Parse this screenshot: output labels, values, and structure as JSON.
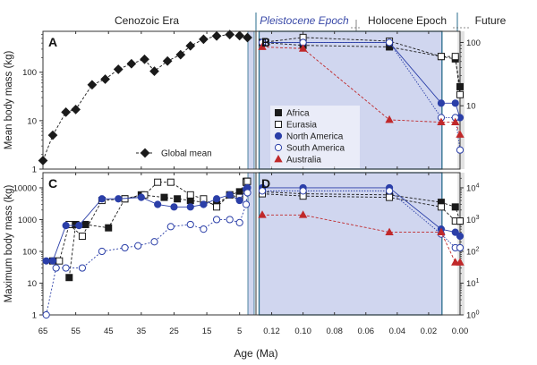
{
  "header": {
    "cenozoic": "Cenozoic Era",
    "pleistocene": "Pleistocene Epoch",
    "holocene": "Holocene Epoch",
    "future": "Future"
  },
  "xlabel": "Age (Ma)",
  "colors": {
    "africa": "#1a1a1a",
    "eurasia": "#1a1a1a",
    "north_america": "#2b3fa8",
    "south_america": "#2b3fa8",
    "australia": "#c0282a",
    "global": "#1a1a1a",
    "pleistocene_shade": "#d0d6ef",
    "pleistocene_frame": "#2a6e8c",
    "future_shade": "#e2e2e2"
  },
  "legend_top": [
    {
      "key": "africa",
      "label": "Africa",
      "marker": "square-filled"
    },
    {
      "key": "eurasia",
      "label": "Eurasia",
      "marker": "square-open"
    },
    {
      "key": "north_america",
      "label": "North America",
      "marker": "circle-filled"
    },
    {
      "key": "south_america",
      "label": "South America",
      "marker": "circle-open"
    },
    {
      "key": "australia",
      "label": "Australia",
      "marker": "triangle-filled"
    }
  ],
  "chart_data": [
    {
      "id": "A",
      "type": "line",
      "panel_label": "A",
      "ylabel": "Mean body mass (kg)",
      "yscale": "log",
      "ylim": [
        1,
        700
      ],
      "yticks": [
        1,
        10,
        100
      ],
      "xlim": [
        65,
        0
      ],
      "xticks": [
        65,
        55,
        45,
        35,
        25,
        15,
        5
      ],
      "series": [
        {
          "key": "global",
          "name": "Global mean",
          "marker": "diamond-filled",
          "x": [
            65,
            62,
            58,
            55,
            50,
            46,
            42,
            38,
            34,
            31,
            27,
            23,
            20,
            16,
            12,
            8,
            5,
            2.6
          ],
          "y": [
            1.5,
            5,
            15,
            17,
            55,
            72,
            115,
            150,
            185,
            105,
            170,
            230,
            350,
            480,
            560,
            600,
            570,
            520
          ]
        }
      ]
    },
    {
      "id": "B",
      "type": "line",
      "panel_label": "B",
      "yscale": "log",
      "ylim": [
        1,
        150
      ],
      "yticks": [
        10,
        100
      ],
      "xlim": [
        0.13,
        0
      ],
      "xticks": [
        0.12,
        0.1,
        0.08,
        0.06,
        0.04,
        0.02,
        0.0
      ],
      "series": [
        {
          "key": "africa",
          "name": "Africa",
          "marker": "square-filled",
          "x": [
            0.126,
            0.1,
            0.045,
            0.012,
            0.003,
            0.0
          ],
          "y": [
            100,
            90,
            85,
            60,
            55,
            20
          ]
        },
        {
          "key": "eurasia",
          "name": "Eurasia",
          "marker": "square-open",
          "x": [
            0.126,
            0.1,
            0.045,
            0.012,
            0.003,
            0.0
          ],
          "y": [
            100,
            120,
            105,
            60,
            60,
            15
          ]
        },
        {
          "key": "north_america",
          "name": "North America",
          "marker": "circle-filled",
          "x": [
            0.126,
            0.1,
            0.045,
            0.012,
            0.003,
            0.0
          ],
          "y": [
            100,
            100,
            100,
            11,
            11,
            6.5
          ]
        },
        {
          "key": "south_america",
          "name": "South America",
          "marker": "circle-open",
          "x": [
            0.126,
            0.1,
            0.045,
            0.012,
            0.003,
            0.0
          ],
          "y": [
            100,
            100,
            100,
            6.5,
            6.5,
            2
          ]
        },
        {
          "key": "australia",
          "name": "Australia",
          "marker": "triangle-filled",
          "x": [
            0.126,
            0.1,
            0.045,
            0.012,
            0.003,
            0.0
          ],
          "y": [
            85,
            80,
            6,
            5.5,
            5.5,
            3.5
          ]
        }
      ]
    },
    {
      "id": "C",
      "type": "line",
      "panel_label": "C",
      "ylabel": "Maximum body mass (kg)",
      "yscale": "log",
      "ylim": [
        1,
        30000
      ],
      "yticks": [
        1,
        10,
        100,
        1000,
        10000
      ],
      "xlim": [
        65,
        0
      ],
      "xticks": [
        65,
        55,
        45,
        35,
        25,
        15,
        5
      ],
      "series": [
        {
          "key": "africa",
          "name": "Africa",
          "marker": "square-filled",
          "x": [
            57,
            55,
            52,
            45,
            40,
            35,
            28,
            24,
            20,
            16,
            12,
            8,
            5,
            3,
            2.6
          ],
          "y": [
            15,
            700,
            700,
            550,
            4500,
            6000,
            5000,
            4500,
            4000,
            3500,
            3000,
            6000,
            7500,
            16000,
            16000
          ]
        },
        {
          "key": "eurasia",
          "name": "Eurasia",
          "marker": "square-open",
          "x": [
            62,
            60,
            57,
            53,
            47,
            40,
            34,
            30,
            26,
            20,
            16,
            12,
            8,
            5,
            3,
            2.6
          ],
          "y": [
            50,
            50,
            700,
            300,
            4000,
            4500,
            6000,
            15000,
            15000,
            6000,
            4500,
            2500,
            6000,
            5000,
            15000,
            16000
          ]
        },
        {
          "key": "north_america",
          "name": "North America",
          "marker": "circle-filled",
          "x": [
            64,
            62,
            58,
            54,
            47,
            42,
            35,
            30,
            25,
            20,
            16,
            12,
            8,
            5,
            3,
            2.6
          ],
          "y": [
            50,
            50,
            650,
            650,
            4500,
            4500,
            5000,
            3000,
            2500,
            2500,
            3000,
            4500,
            6000,
            4000,
            9000,
            10000
          ]
        },
        {
          "key": "south_america",
          "name": "South America",
          "marker": "circle-open",
          "x": [
            64,
            61,
            58,
            53,
            47,
            40,
            36,
            31,
            26,
            20,
            16,
            12,
            8,
            5,
            3,
            2.6
          ],
          "y": [
            1,
            30,
            30,
            30,
            100,
            130,
            150,
            200,
            600,
            700,
            500,
            1000,
            1000,
            800,
            3000,
            7000
          ]
        }
      ]
    },
    {
      "id": "D",
      "type": "line",
      "panel_label": "D",
      "yscale": "log",
      "ylim": [
        1,
        30000
      ],
      "yticks": [
        1,
        10,
        100,
        1000,
        10000
      ],
      "ytick_labels": [
        "10^0",
        "10^1",
        "10^2",
        "10^3",
        "10^4"
      ],
      "xlim": [
        0.13,
        0
      ],
      "xticks": [
        0.12,
        0.1,
        0.08,
        0.06,
        0.04,
        0.02,
        0.0
      ],
      "xtick_labels": [
        "0.12",
        "0.10",
        "0.08",
        "0.06",
        "0.04",
        "0.02",
        "0.00"
      ],
      "series": [
        {
          "key": "africa",
          "name": "Africa",
          "marker": "square-filled",
          "x": [
            0.126,
            0.1,
            0.045,
            0.012,
            0.003,
            0.0
          ],
          "y": [
            7500,
            6500,
            6000,
            3500,
            2500,
            900
          ]
        },
        {
          "key": "eurasia",
          "name": "Eurasia",
          "marker": "square-open",
          "x": [
            0.126,
            0.1,
            0.045,
            0.012,
            0.003,
            0.0
          ],
          "y": [
            6500,
            5500,
            5000,
            2500,
            900,
            900
          ]
        },
        {
          "key": "north_america",
          "name": "North America",
          "marker": "circle-filled",
          "x": [
            0.126,
            0.1,
            0.045,
            0.012,
            0.003,
            0.0
          ],
          "y": [
            10000,
            10000,
            10000,
            500,
            400,
            300
          ]
        },
        {
          "key": "south_america",
          "name": "South America",
          "marker": "circle-open",
          "x": [
            0.126,
            0.1,
            0.045,
            0.012,
            0.003,
            0.0
          ],
          "y": [
            8000,
            8000,
            8000,
            350,
            130,
            130
          ]
        },
        {
          "key": "australia",
          "name": "Australia",
          "marker": "triangle-filled",
          "x": [
            0.126,
            0.1,
            0.045,
            0.012,
            0.003,
            0.0
          ],
          "y": [
            1400,
            1400,
            400,
            400,
            45,
            45
          ]
        }
      ]
    }
  ]
}
